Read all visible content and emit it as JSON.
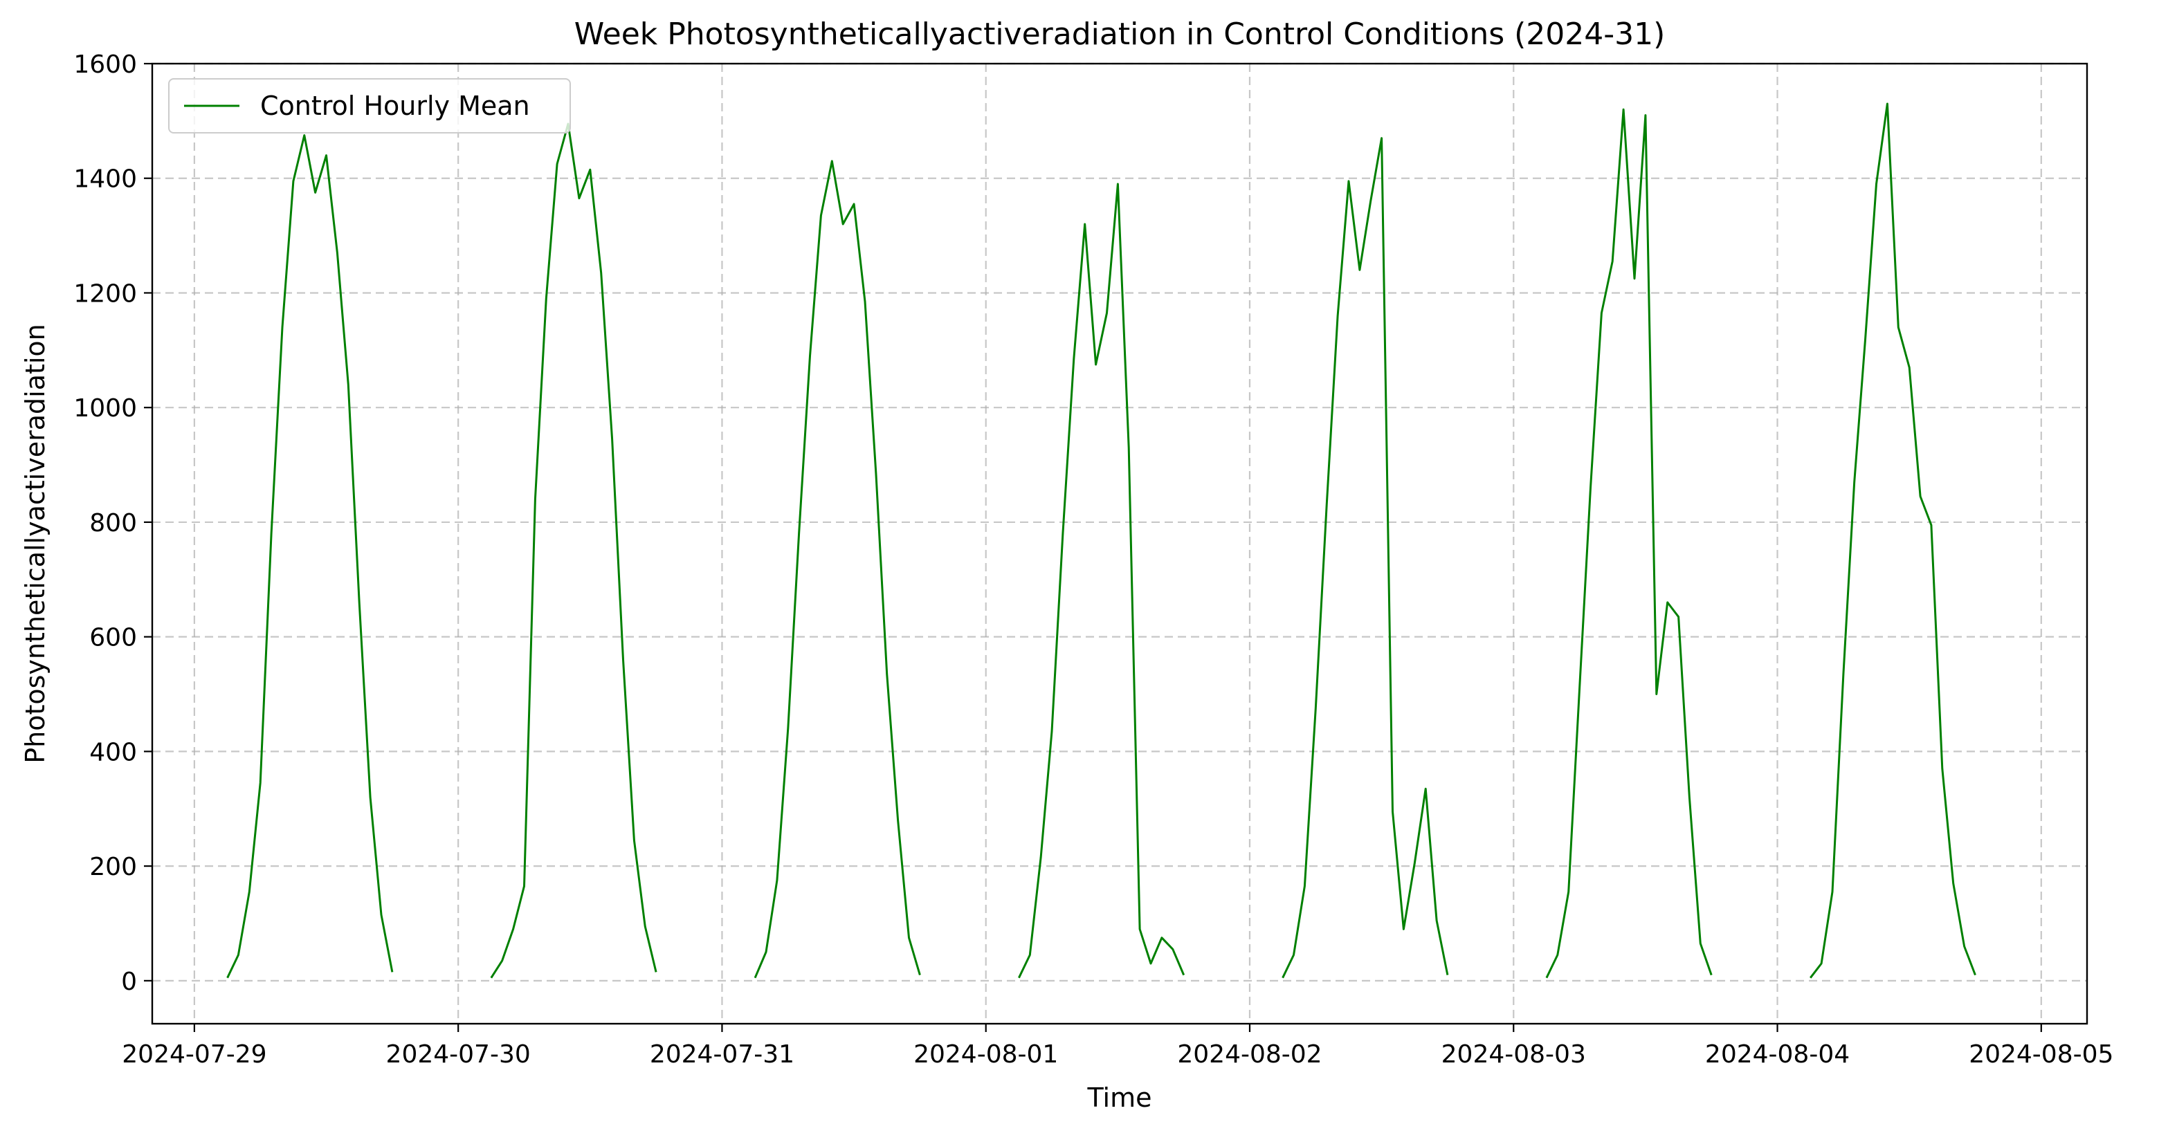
{
  "chart_data": {
    "type": "line",
    "title": "Week Photosyntheticallyactiveradiation in Control Conditions (2024-31)",
    "xlabel": "Time",
    "ylabel": "Photosyntheticallyactiveradiation",
    "xlim": [
      "2024-07-28T20:10",
      "2024-08-05T04:10"
    ],
    "ylim": [
      -75,
      1600
    ],
    "grid": true,
    "legend_position": "top-left",
    "x_ticks": [
      "2024-07-29",
      "2024-07-30",
      "2024-07-31",
      "2024-08-01",
      "2024-08-02",
      "2024-08-03",
      "2024-08-04",
      "2024-08-05"
    ],
    "y_ticks": [
      0,
      200,
      400,
      600,
      800,
      1000,
      1200,
      1400,
      1600
    ],
    "series": [
      {
        "name": "Control Hourly Mean",
        "color": "#008000",
        "segments": [
          {
            "x": [
              "2024-07-29T03:00",
              "2024-07-29T04:00",
              "2024-07-29T05:00",
              "2024-07-29T06:00",
              "2024-07-29T07:00",
              "2024-07-29T08:00",
              "2024-07-29T09:00",
              "2024-07-29T10:00",
              "2024-07-29T11:00",
              "2024-07-29T12:00",
              "2024-07-29T13:00",
              "2024-07-29T14:00",
              "2024-07-29T15:00",
              "2024-07-29T16:00",
              "2024-07-29T17:00",
              "2024-07-29T18:00"
            ],
            "y": [
              5,
              45,
              155,
              345,
              780,
              1140,
              1395,
              1475,
              1375,
              1440,
              1270,
              1040,
              660,
              320,
              115,
              15
            ]
          },
          {
            "x": [
              "2024-07-30T03:00",
              "2024-07-30T04:00",
              "2024-07-30T05:00",
              "2024-07-30T06:00",
              "2024-07-30T07:00",
              "2024-07-30T08:00",
              "2024-07-30T09:00",
              "2024-07-30T10:00",
              "2024-07-30T11:00",
              "2024-07-30T12:00",
              "2024-07-30T13:00",
              "2024-07-30T14:00",
              "2024-07-30T15:00",
              "2024-07-30T16:00",
              "2024-07-30T17:00",
              "2024-07-30T18:00"
            ],
            "y": [
              5,
              35,
              90,
              165,
              840,
              1190,
              1425,
              1495,
              1365,
              1415,
              1235,
              945,
              560,
              245,
              95,
              15
            ]
          },
          {
            "x": [
              "2024-07-31T03:00",
              "2024-07-31T04:00",
              "2024-07-31T05:00",
              "2024-07-31T06:00",
              "2024-07-31T07:00",
              "2024-07-31T08:00",
              "2024-07-31T09:00",
              "2024-07-31T10:00",
              "2024-07-31T11:00",
              "2024-07-31T12:00",
              "2024-07-31T13:00",
              "2024-07-31T14:00",
              "2024-07-31T15:00",
              "2024-07-31T16:00",
              "2024-07-31T17:00",
              "2024-07-31T18:00"
            ],
            "y": [
              5,
              50,
              175,
              440,
              780,
              1090,
              1335,
              1430,
              1320,
              1355,
              1185,
              885,
              535,
              280,
              75,
              10
            ]
          },
          {
            "x": [
              "2024-08-01T03:00",
              "2024-08-01T04:00",
              "2024-08-01T05:00",
              "2024-08-01T06:00",
              "2024-08-01T07:00",
              "2024-08-01T08:00",
              "2024-08-01T09:00",
              "2024-08-01T10:00",
              "2024-08-01T11:00",
              "2024-08-01T12:00",
              "2024-08-01T13:00",
              "2024-08-01T14:00",
              "2024-08-01T15:00",
              "2024-08-01T16:00",
              "2024-08-01T17:00",
              "2024-08-01T18:00"
            ],
            "y": [
              5,
              45,
              215,
              435,
              780,
              1085,
              1320,
              1075,
              1165,
              1390,
              930,
              90,
              30,
              75,
              55,
              10
            ]
          },
          {
            "x": [
              "2024-08-02T03:00",
              "2024-08-02T04:00",
              "2024-08-02T05:00",
              "2024-08-02T06:00",
              "2024-08-02T07:00",
              "2024-08-02T08:00",
              "2024-08-02T09:00",
              "2024-08-02T10:00",
              "2024-08-02T11:00",
              "2024-08-02T12:00",
              "2024-08-02T13:00",
              "2024-08-02T14:00",
              "2024-08-02T15:00",
              "2024-08-02T16:00",
              "2024-08-02T17:00",
              "2024-08-02T18:00"
            ],
            "y": [
              5,
              45,
              165,
              475,
              830,
              1160,
              1395,
              1240,
              1360,
              1470,
              295,
              90,
              205,
              335,
              105,
              10
            ]
          },
          {
            "x": [
              "2024-08-03T03:00",
              "2024-08-03T04:00",
              "2024-08-03T05:00",
              "2024-08-03T06:00",
              "2024-08-03T07:00",
              "2024-08-03T08:00",
              "2024-08-03T09:00",
              "2024-08-03T10:00",
              "2024-08-03T11:00",
              "2024-08-03T12:00",
              "2024-08-03T13:00",
              "2024-08-03T14:00",
              "2024-08-03T15:00",
              "2024-08-03T16:00",
              "2024-08-03T17:00",
              "2024-08-03T18:00"
            ],
            "y": [
              5,
              45,
              155,
              510,
              860,
              1165,
              1255,
              1520,
              1225,
              1510,
              500,
              660,
              635,
              320,
              65,
              10
            ]
          },
          {
            "x": [
              "2024-08-04T03:00",
              "2024-08-04T04:00",
              "2024-08-04T05:00",
              "2024-08-04T06:00",
              "2024-08-04T07:00",
              "2024-08-04T08:00",
              "2024-08-04T09:00",
              "2024-08-04T10:00",
              "2024-08-04T11:00",
              "2024-08-04T12:00",
              "2024-08-04T13:00",
              "2024-08-04T14:00",
              "2024-08-04T15:00",
              "2024-08-04T16:00",
              "2024-08-04T17:00",
              "2024-08-04T18:00"
            ],
            "y": [
              5,
              30,
              155,
              535,
              870,
              1120,
              1390,
              1530,
              1140,
              1070,
              845,
              795,
              370,
              170,
              60,
              10
            ]
          }
        ]
      }
    ]
  }
}
